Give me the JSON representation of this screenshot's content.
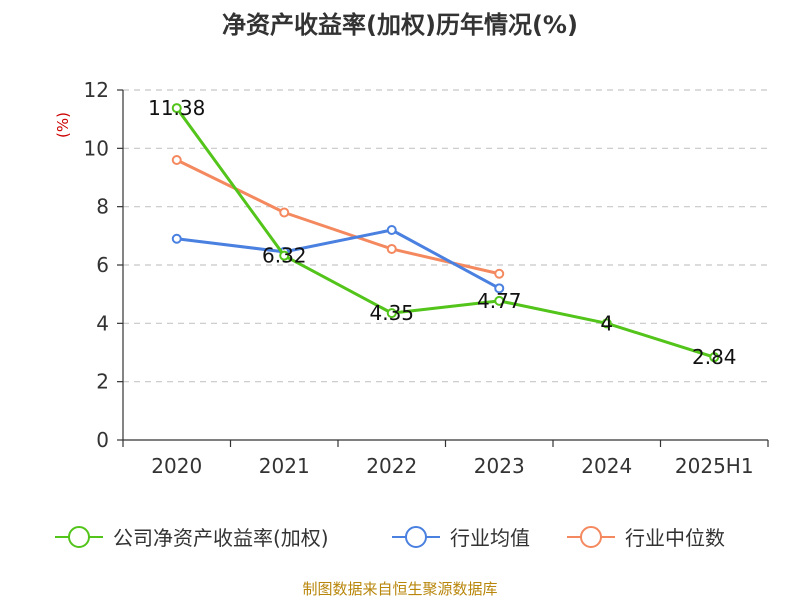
{
  "chart_data": {
    "type": "line",
    "title": "净资产收益率(加权)历年情况(%)",
    "ylabel": "(%)",
    "xlabel": "",
    "categories": [
      "2020",
      "2021",
      "2022",
      "2023",
      "2024",
      "2025H1"
    ],
    "ylim": [
      0,
      12
    ],
    "yticks": [
      0,
      2,
      4,
      6,
      8,
      10,
      12
    ],
    "grid": true,
    "legend_position": "bottom",
    "series": [
      {
        "name": "公司净资产收益率(加权)",
        "color": "#52c41a",
        "values": [
          11.38,
          6.32,
          4.35,
          4.77,
          4.0,
          2.84
        ],
        "labels": [
          "11.38",
          "6.32",
          "4.35",
          "4.77",
          "4",
          "2.84"
        ]
      },
      {
        "name": "行业均值",
        "color": "#4a80e0",
        "values": [
          6.9,
          6.45,
          7.2,
          5.2,
          null,
          null
        ]
      },
      {
        "name": "行业中位数",
        "color": "#f4895f",
        "values": [
          9.6,
          7.8,
          6.55,
          5.7,
          null,
          null
        ]
      }
    ]
  },
  "source": "制图数据来自恒生聚源数据库"
}
